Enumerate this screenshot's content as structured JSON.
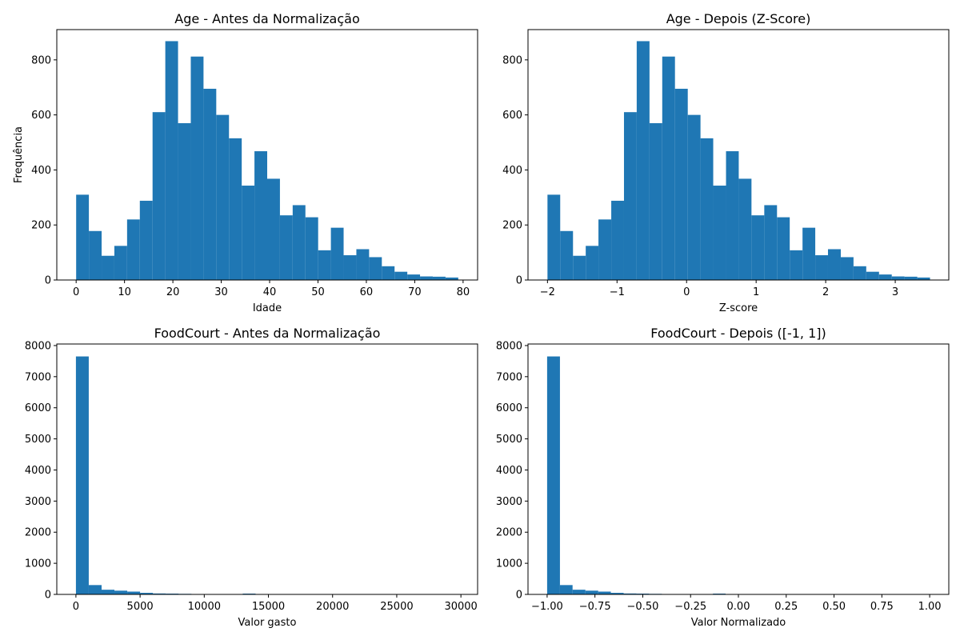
{
  "chart_data": [
    {
      "type": "bar",
      "title": "Age - Antes da Normalização",
      "xlabel": "Idade",
      "ylabel": "Frequência",
      "xlim": [
        -4,
        83
      ],
      "ylim": [
        0,
        910
      ],
      "xticks": [
        0,
        10,
        20,
        30,
        40,
        50,
        60,
        70,
        80
      ],
      "xtick_labels": [
        "0",
        "10",
        "20",
        "30",
        "40",
        "50",
        "60",
        "70",
        "80"
      ],
      "yticks": [
        0,
        200,
        400,
        600,
        800
      ],
      "ytick_labels": [
        "0",
        "200",
        "400",
        "600",
        "800"
      ],
      "bin_edges": [
        0,
        2.633,
        5.267,
        7.9,
        10.533,
        13.167,
        15.8,
        18.433,
        21.067,
        23.7,
        26.333,
        28.967,
        31.6,
        34.233,
        36.867,
        39.5,
        42.133,
        44.767,
        47.4,
        50.033,
        52.667,
        55.3,
        57.933,
        60.567,
        63.2,
        65.833,
        68.467,
        71.1,
        73.733,
        76.367,
        79
      ],
      "values": [
        310,
        178,
        88,
        124,
        220,
        288,
        610,
        868,
        570,
        812,
        695,
        600,
        515,
        343,
        468,
        368,
        235,
        272,
        228,
        108,
        190,
        90,
        112,
        83,
        50,
        30,
        20,
        13,
        12,
        9
      ],
      "grid": false
    },
    {
      "type": "bar",
      "title": "Age - Depois (Z-Score)",
      "xlabel": "Z-score",
      "ylabel": "",
      "xlim": [
        -2.28,
        3.77
      ],
      "ylim": [
        0,
        910
      ],
      "xticks": [
        -2,
        -1,
        0,
        1,
        2,
        3
      ],
      "xtick_labels": [
        "−2",
        "−1",
        "0",
        "1",
        "2",
        "3"
      ],
      "yticks": [
        0,
        200,
        400,
        600,
        800
      ],
      "ytick_labels": [
        "0",
        "200",
        "400",
        "600",
        "800"
      ],
      "bin_edges": [
        -2.0,
        -1.817,
        -1.633,
        -1.45,
        -1.267,
        -1.083,
        -0.9,
        -0.717,
        -0.533,
        -0.35,
        -0.167,
        0.017,
        0.2,
        0.383,
        0.567,
        0.75,
        0.933,
        1.117,
        1.3,
        1.483,
        1.667,
        1.85,
        2.033,
        2.217,
        2.4,
        2.583,
        2.767,
        2.95,
        3.133,
        3.317,
        3.5
      ],
      "values": [
        310,
        178,
        88,
        124,
        220,
        288,
        610,
        868,
        570,
        812,
        695,
        600,
        515,
        343,
        468,
        368,
        235,
        272,
        228,
        108,
        190,
        90,
        112,
        83,
        50,
        30,
        20,
        13,
        12,
        9
      ],
      "grid": false
    },
    {
      "type": "bar",
      "title": "FoodCourt - Antes da Normalização",
      "xlabel": "Valor gasto",
      "ylabel": "",
      "xlim": [
        -1490,
        31300
      ],
      "ylim": [
        0,
        8050
      ],
      "xticks": [
        0,
        5000,
        10000,
        15000,
        20000,
        25000,
        30000
      ],
      "xtick_labels": [
        "0",
        "5000",
        "10000",
        "15000",
        "20000",
        "25000",
        "30000"
      ],
      "yticks": [
        0,
        1000,
        2000,
        3000,
        4000,
        5000,
        6000,
        7000,
        8000
      ],
      "ytick_labels": [
        "0",
        "1000",
        "2000",
        "3000",
        "4000",
        "5000",
        "6000",
        "7000",
        "8000"
      ],
      "bin_edges": [
        0,
        1000,
        2000,
        3000,
        4000,
        5000,
        6000,
        7000,
        8000,
        9000,
        10000,
        11000,
        12000,
        13000,
        14000,
        15000,
        16000,
        17000,
        18000,
        19000,
        20000,
        21000,
        22000,
        23000,
        24000,
        25000,
        26000,
        27000,
        28000,
        29000,
        29813
      ],
      "values": [
        7650,
        300,
        150,
        120,
        90,
        50,
        30,
        25,
        18,
        12,
        10,
        8,
        5,
        25,
        3,
        2,
        2,
        1,
        1,
        1,
        0,
        0,
        0,
        0,
        0,
        0,
        0,
        0,
        0,
        1
      ],
      "grid": false
    },
    {
      "type": "bar",
      "title": "FoodCourt - Depois ([-1, 1])",
      "xlabel": "Valor Normalizado",
      "ylabel": "",
      "xlim": [
        -1.1,
        1.1
      ],
      "ylim": [
        0,
        8050
      ],
      "xticks": [
        -1.0,
        -0.75,
        -0.5,
        -0.25,
        0.0,
        0.25,
        0.5,
        0.75,
        1.0
      ],
      "xtick_labels": [
        "−1.00",
        "−0.75",
        "−0.50",
        "−0.25",
        "0.00",
        "0.25",
        "0.50",
        "0.75",
        "1.00"
      ],
      "yticks": [
        0,
        1000,
        2000,
        3000,
        4000,
        5000,
        6000,
        7000,
        8000
      ],
      "ytick_labels": [
        "0",
        "1000",
        "2000",
        "3000",
        "4000",
        "5000",
        "6000",
        "7000",
        "8000"
      ],
      "bin_edges": [
        -1.0,
        -0.933,
        -0.867,
        -0.8,
        -0.733,
        -0.667,
        -0.6,
        -0.533,
        -0.467,
        -0.4,
        -0.333,
        -0.267,
        -0.2,
        -0.133,
        -0.067,
        0.0,
        0.067,
        0.133,
        0.2,
        0.267,
        0.333,
        0.4,
        0.467,
        0.533,
        0.6,
        0.667,
        0.733,
        0.8,
        0.867,
        0.933,
        1.0
      ],
      "values": [
        7650,
        300,
        150,
        120,
        90,
        50,
        30,
        25,
        18,
        12,
        10,
        8,
        5,
        25,
        3,
        2,
        2,
        1,
        1,
        1,
        0,
        0,
        0,
        0,
        0,
        0,
        0,
        0,
        0,
        1
      ],
      "grid": false
    }
  ],
  "colors": {
    "bar": "#1f77b4",
    "axis": "#000000",
    "background": "#ffffff"
  }
}
